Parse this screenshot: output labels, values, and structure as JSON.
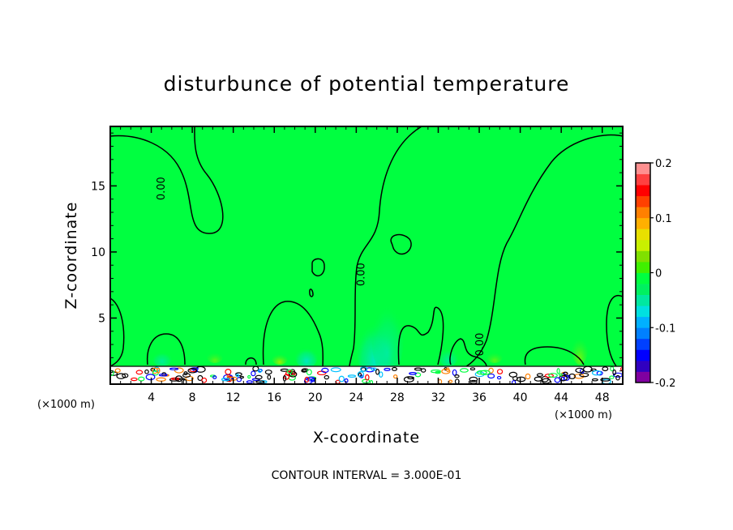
{
  "chart_data": {
    "type": "heatmap",
    "title": "disturbunce of potential temperature",
    "xlabel": "X-coordinate",
    "ylabel": "Z-coordinate",
    "x_unit": "(×1000 m)",
    "z_unit": "(×1000 m)",
    "xlim": [
      0,
      50
    ],
    "ylim": [
      0,
      19.5
    ],
    "x_ticks": [
      4,
      8,
      12,
      16,
      20,
      24,
      28,
      32,
      36,
      40,
      44,
      48
    ],
    "y_ticks": [
      5,
      10,
      15
    ],
    "colorbar": {
      "range": [
        -0.2,
        0.2
      ],
      "ticks": [
        {
          "value": 0.2,
          "label": "0.2"
        },
        {
          "value": 0.1,
          "label": "0.1"
        },
        {
          "value": 0,
          "label": "0"
        },
        {
          "value": -0.1,
          "label": "-0.1"
        },
        {
          "value": -0.2,
          "label": "-0.2"
        }
      ],
      "colors": [
        "#8000a0",
        "#3000c0",
        "#0000ff",
        "#0040ff",
        "#0080ff",
        "#00b0ff",
        "#00e0e0",
        "#00e8a0",
        "#00f060",
        "#00ff40",
        "#40f000",
        "#80e000",
        "#c8f000",
        "#e8e000",
        "#ffb000",
        "#ff8000",
        "#ff4000",
        "#ff0000",
        "#ff4040",
        "#ff9090"
      ]
    },
    "contour_labels": [
      {
        "text": "0.00",
        "x": 5.3,
        "z": 14.8
      },
      {
        "text": "0.00",
        "x": 24.8,
        "z": 8.3
      },
      {
        "text": "0.00",
        "x": 36.4,
        "z": 3.0
      }
    ],
    "footer": "CONTOUR INTERVAL = 3.000E-01",
    "background_color": "#00ff40"
  }
}
